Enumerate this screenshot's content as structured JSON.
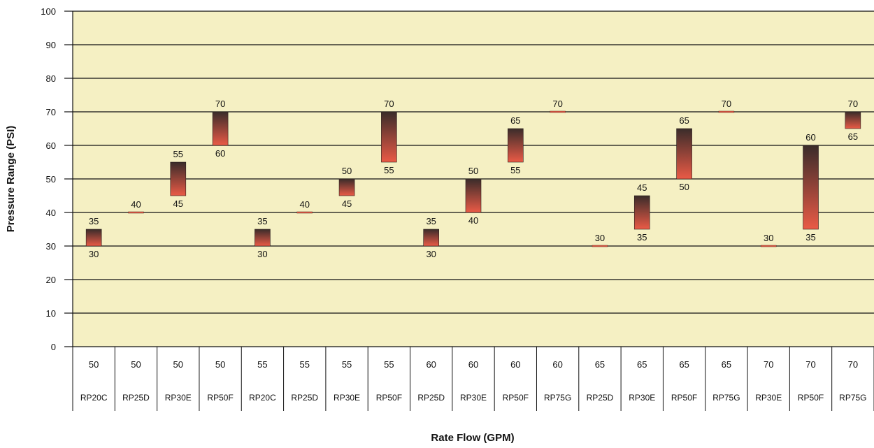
{
  "chart_data": {
    "type": "bar",
    "subtype": "floating-range",
    "ylabel": "Pressure Range (PSI)",
    "xlabel": "Rate Flow (GPM)",
    "ylim": [
      0,
      100
    ],
    "yticks": [
      0,
      10,
      20,
      30,
      40,
      50,
      60,
      70,
      80,
      90,
      100
    ],
    "grid": true,
    "categories": [
      {
        "flow": "50",
        "model": "RP20C",
        "low": 30,
        "high": 35
      },
      {
        "flow": "50",
        "model": "RP25D",
        "low": 40,
        "high": 40
      },
      {
        "flow": "50",
        "model": "RP30E",
        "low": 45,
        "high": 55
      },
      {
        "flow": "50",
        "model": "RP50F",
        "low": 60,
        "high": 70
      },
      {
        "flow": "55",
        "model": "RP20C",
        "low": 30,
        "high": 35
      },
      {
        "flow": "55",
        "model": "RP25D",
        "low": 40,
        "high": 40
      },
      {
        "flow": "55",
        "model": "RP30E",
        "low": 45,
        "high": 50
      },
      {
        "flow": "55",
        "model": "RP50F",
        "low": 55,
        "high": 70
      },
      {
        "flow": "60",
        "model": "RP25D",
        "low": 30,
        "high": 35
      },
      {
        "flow": "60",
        "model": "RP30E",
        "low": 40,
        "high": 50
      },
      {
        "flow": "60",
        "model": "RP50F",
        "low": 55,
        "high": 65
      },
      {
        "flow": "60",
        "model": "RP75G",
        "low": 70,
        "high": 70
      },
      {
        "flow": "65",
        "model": "RP25D",
        "low": 30,
        "high": 30
      },
      {
        "flow": "65",
        "model": "RP30E",
        "low": 35,
        "high": 45
      },
      {
        "flow": "65",
        "model": "RP50F",
        "low": 50,
        "high": 65
      },
      {
        "flow": "65",
        "model": "RP75G",
        "low": 70,
        "high": 70
      },
      {
        "flow": "70",
        "model": "RP30E",
        "low": 30,
        "high": 30
      },
      {
        "flow": "70",
        "model": "RP50F",
        "low": 35,
        "high": 60
      },
      {
        "flow": "70",
        "model": "RP75G",
        "low": 65,
        "high": 70
      }
    ],
    "colors": {
      "plot_background": "#f5f0c3",
      "gridline": "#111111",
      "bar_top": "#3a2c2a",
      "bar_bottom": "#ea5a46"
    }
  }
}
